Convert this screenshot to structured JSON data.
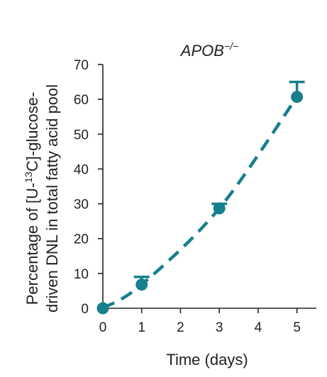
{
  "chart_data": {
    "type": "line",
    "title": "APOB",
    "title_superscript": "−/−",
    "xlabel": "Time (days)",
    "ylabel_line1_prefix": "Percentage of [U-",
    "ylabel_line1_sup": "13",
    "ylabel_line1_suffix": "C]-glucose-",
    "ylabel_line2": "driven DNL in total fatty acid pool",
    "xlim": [
      0,
      5.5
    ],
    "ylim": [
      0,
      70
    ],
    "xticks": [
      "0",
      "1",
      "2",
      "3",
      "4",
      "5"
    ],
    "yticks": [
      "0",
      "10",
      "20",
      "30",
      "40",
      "50",
      "60",
      "70"
    ],
    "series": [
      {
        "x": [
          0,
          1,
          3,
          5
        ],
        "y": [
          0,
          6.8,
          28.7,
          60.7
        ],
        "error_upper": [
          0,
          2.2,
          1.3,
          4.3
        ],
        "line_style": "dashed",
        "color": "#177f8d"
      }
    ],
    "grid": false
  }
}
